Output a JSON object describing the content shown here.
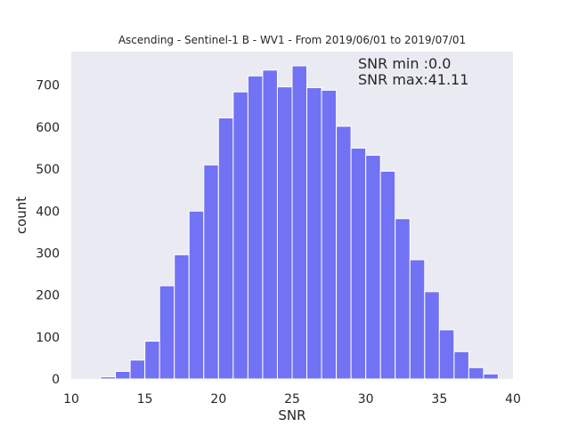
{
  "chart_data": {
    "type": "bar",
    "title": "Ascending - Sentinel-1 B - WV1 - From 2019/06/01 to 2019/07/01",
    "xlabel": "SNR",
    "ylabel": "count",
    "xlim": [
      10,
      40
    ],
    "ylim": [
      0,
      780
    ],
    "xticks": [
      10,
      15,
      20,
      25,
      30,
      35,
      40
    ],
    "yticks": [
      0,
      100,
      200,
      300,
      400,
      500,
      600,
      700
    ],
    "bin_width": 1.0,
    "bin_starts": [
      12,
      13,
      14,
      15,
      16,
      17,
      18,
      19,
      20,
      21,
      22,
      23,
      24,
      25,
      26,
      27,
      28,
      29,
      30,
      31,
      32,
      33,
      34,
      35,
      36,
      37,
      38
    ],
    "values": [
      5,
      18,
      45,
      90,
      222,
      296,
      400,
      510,
      622,
      684,
      722,
      736,
      696,
      746,
      694,
      688,
      602,
      550,
      533,
      495,
      382,
      284,
      208,
      117,
      65,
      27,
      12
    ],
    "bar_color": "#7272f4",
    "background_color": "#eaeaf2",
    "grid": false,
    "annotations": [
      "SNR min :0.0",
      "SNR max:41.11"
    ]
  }
}
